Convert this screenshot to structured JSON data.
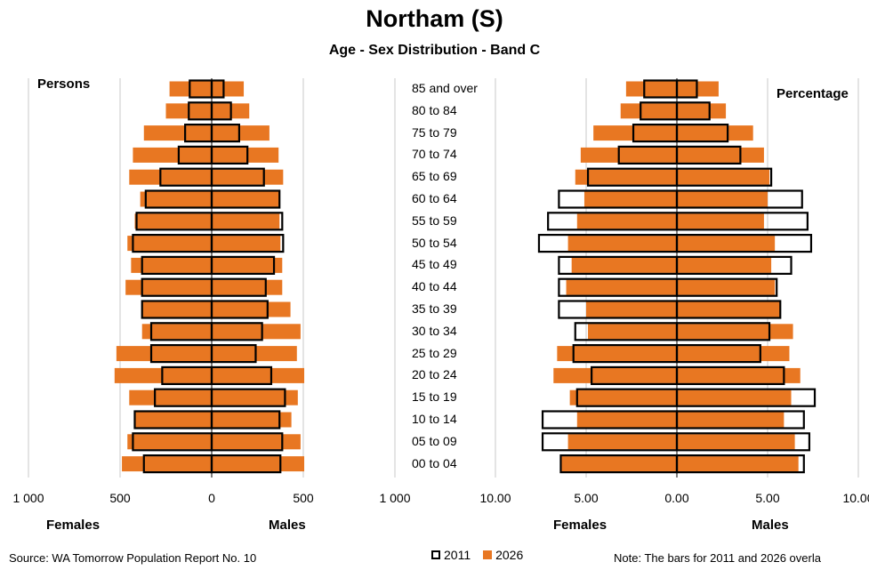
{
  "title": "Northam (S)",
  "subtitle": "Age - Sex Distribution - Band C",
  "source": "Source: WA Tomorrow Population Report No. 10",
  "note": "Note: The bars for 2011 and 2026 overla",
  "colors": {
    "fill2026": "#e87722",
    "outline2011": "#000000",
    "grid": "#c8c8c8"
  },
  "chart_data": [
    {
      "type": "bar",
      "title": "Persons",
      "orientation": "horizontal-pyramid",
      "left_label": "Females",
      "right_label": "Males",
      "xlim": [
        -1000,
        1000
      ],
      "xticks": [
        "1 000",
        "500",
        "0",
        "500",
        "1 000"
      ],
      "categories": [
        "85 and over",
        "80 to 84",
        "75 to 79",
        "70 to 74",
        "65 to 69",
        "60 to 64",
        "55 to 59",
        "50 to 54",
        "45 to 49",
        "40 to 44",
        "35 to 39",
        "30 to 34",
        "25 to 29",
        "20 to 24",
        "15 to 19",
        "10 to 14",
        "05 to 09",
        "00 to 04"
      ],
      "series": [
        {
          "name": "2011",
          "females": [
            120,
            125,
            145,
            180,
            280,
            360,
            410,
            430,
            380,
            380,
            380,
            330,
            330,
            270,
            310,
            420,
            430,
            370
          ],
          "males": [
            65,
            105,
            150,
            195,
            285,
            370,
            385,
            390,
            340,
            295,
            305,
            275,
            240,
            325,
            400,
            370,
            385,
            375
          ]
        },
        {
          "name": "2026",
          "females": [
            230,
            250,
            370,
            430,
            450,
            390,
            420,
            460,
            440,
            470,
            380,
            380,
            520,
            530,
            450,
            420,
            460,
            490
          ],
          "males": [
            175,
            205,
            315,
            365,
            390,
            370,
            370,
            375,
            385,
            385,
            430,
            485,
            465,
            505,
            470,
            435,
            485,
            505
          ]
        }
      ]
    },
    {
      "type": "bar",
      "title": "Percentage",
      "orientation": "horizontal-pyramid",
      "left_label": "Females",
      "right_label": "Males",
      "xlim": [
        -10,
        10
      ],
      "xticks": [
        "10.00",
        "5.00",
        "0.00",
        "5.00",
        "10.00"
      ],
      "categories": [
        "85 and over",
        "80 to 84",
        "75 to 79",
        "70 to 74",
        "65 to 69",
        "60 to 64",
        "55 to 59",
        "50 to 54",
        "45 to 49",
        "40 to 44",
        "35 to 39",
        "30 to 34",
        "25 to 29",
        "20 to 24",
        "15 to 19",
        "10 to 14",
        "05 to 09",
        "00 to 04"
      ],
      "series": [
        {
          "name": "2011",
          "females": [
            1.8,
            2.0,
            2.4,
            3.2,
            4.9,
            6.5,
            7.1,
            7.6,
            6.5,
            6.5,
            6.5,
            5.6,
            5.7,
            4.7,
            5.5,
            7.4,
            7.4,
            6.4
          ],
          "males": [
            1.1,
            1.8,
            2.8,
            3.5,
            5.2,
            6.9,
            7.2,
            7.4,
            6.3,
            5.5,
            5.7,
            5.1,
            4.6,
            5.9,
            7.6,
            7.0,
            7.3,
            7.0
          ]
        },
        {
          "name": "2026",
          "females": [
            2.8,
            3.1,
            4.6,
            5.3,
            5.6,
            5.1,
            5.5,
            6.0,
            5.8,
            6.1,
            5.0,
            4.9,
            6.6,
            6.8,
            5.9,
            5.5,
            6.0,
            6.4
          ],
          "males": [
            2.3,
            2.7,
            4.2,
            4.8,
            5.1,
            5.0,
            4.8,
            5.4,
            5.2,
            5.4,
            5.7,
            6.4,
            6.2,
            6.8,
            6.3,
            5.9,
            6.5,
            6.7
          ]
        }
      ]
    }
  ],
  "legend": {
    "item2011": "2011",
    "item2026": "2026"
  }
}
